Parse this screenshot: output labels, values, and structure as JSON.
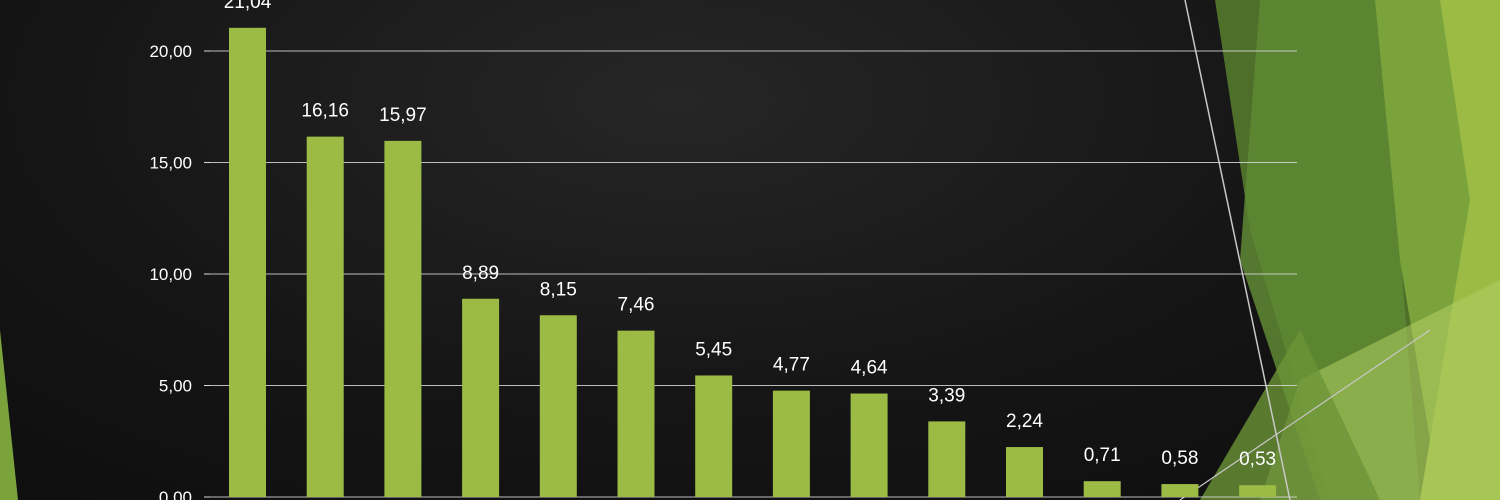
{
  "theme": {
    "bar_color": "#9bbb45",
    "grid_color": "#d9d9d9",
    "text_color": "#ffffff",
    "background_color": "#151515",
    "accent_greens": [
      "#4e6f2a",
      "#5f8a34",
      "#7aa33c",
      "#9bbb45",
      "#b2cf62"
    ]
  },
  "chart_data": {
    "type": "bar",
    "title": "",
    "xlabel": "",
    "ylabel": "",
    "ylim": [
      0,
      20
    ],
    "yticks": [
      0,
      5,
      10,
      15,
      20
    ],
    "ytick_labels": [
      "0,00",
      "5,00",
      "10,00",
      "15,00",
      "20,00"
    ],
    "grid": true,
    "legend": "none",
    "values": [
      21.04,
      16.16,
      15.97,
      8.89,
      8.15,
      7.46,
      5.45,
      4.77,
      4.64,
      3.39,
      2.24,
      0.71,
      0.58,
      0.53
    ],
    "value_labels": [
      "21,04",
      "16,16",
      "15,97",
      "8,89",
      "8,15",
      "7,46",
      "5,45",
      "4,77",
      "4,64",
      "3,39",
      "2,24",
      "0,71",
      "0,58",
      "0,53"
    ]
  }
}
